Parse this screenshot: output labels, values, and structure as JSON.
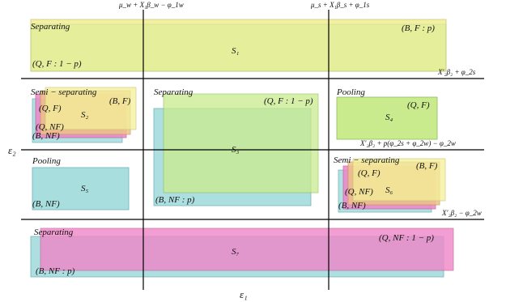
{
  "axes": {
    "horizontal": "ε₂",
    "vertical": "ε₁",
    "threshold_top_left": "μ_w + X₁β_w − φ_1w",
    "threshold_top_right": "μ_s + X₁β_s + φ_1s",
    "threshold_upper": "X′₂β₂ + φ_2s",
    "threshold_middle": "X′₂β₂ + p(φ_2s + φ_2w) − φ_2w",
    "threshold_lower": "X′₂β₂ − φ_2w"
  },
  "regions": {
    "s1": {
      "type": "Separating",
      "name": "S₁",
      "top_label": "(B, F : p)",
      "bottom_label": "(Q, F : 1 − p)"
    },
    "s2": {
      "type": "Semi − separating",
      "name": "S₂",
      "labels": [
        "(B, F)",
        "(Q, F)",
        "(Q, NF)",
        "(B, NF)"
      ]
    },
    "s3": {
      "type": "Separating",
      "name": "S₃",
      "top_label": "(Q, F : 1 − p)",
      "bottom_label": "(B, NF : p)"
    },
    "s4": {
      "type": "Pooling",
      "name": "S₄",
      "label": "(Q, F)"
    },
    "s5": {
      "type": "Pooling",
      "name": "S₅",
      "label": "(B, NF)"
    },
    "s6": {
      "type": "Semi − separating",
      "name": "S₆",
      "labels": [
        "(B, F)",
        "(Q, F)",
        "(Q, NF)",
        "(B, NF)"
      ]
    },
    "s7": {
      "type": "Separating",
      "name": "S₇",
      "top_label": "(Q, NF : 1 − p)",
      "bottom_label": "(B, NF : p)"
    }
  },
  "colors": {
    "yellow": "#f3ef9a",
    "green": "#c9eb8e",
    "cyan": "#a9dedf",
    "pink": "#ef86c8",
    "orange": "#efc38a",
    "axis": "#000000"
  }
}
